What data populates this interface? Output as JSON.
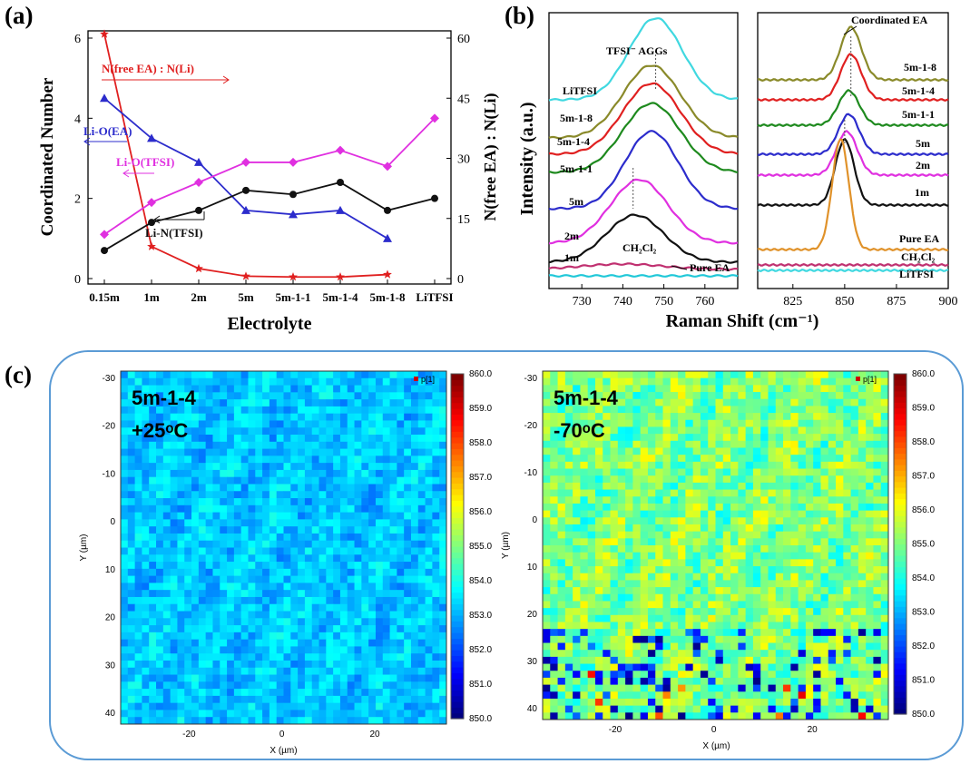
{
  "chart_data": [
    {
      "id": "a",
      "panel_label": "(a)",
      "type": "line",
      "xlabel": "Electrolyte",
      "ylabel_left": "Coordinated Number",
      "ylabel_right": "N(free EA) : N(Li)",
      "categories": [
        "0.15m",
        "1m",
        "2m",
        "5m",
        "5m-1-1",
        "5m-1-4",
        "5m-1-8",
        "LiTFSI"
      ],
      "ylim_left": [
        0,
        6
      ],
      "yticks_left": [
        "0",
        "2",
        "4",
        "6"
      ],
      "ylim_right": [
        0,
        60
      ],
      "yticks_right": [
        "0",
        "15",
        "30",
        "45",
        "60"
      ],
      "series": [
        {
          "name": "N(free EA) : N(Li)",
          "axis": "right",
          "color": "#e02020",
          "marker": "star",
          "values": [
            61,
            8,
            2.5,
            0.6,
            0.4,
            0.4,
            1,
            null
          ]
        },
        {
          "name": "Li-O(EA)",
          "axis": "left",
          "color": "#2c2ccc",
          "marker": "triangle",
          "values": [
            4.5,
            3.5,
            2.9,
            1.7,
            1.6,
            1.7,
            1.0,
            null
          ]
        },
        {
          "name": "Li-O(TFSI)",
          "axis": "left",
          "color": "#e030e0",
          "marker": "diamond",
          "values": [
            1.1,
            1.9,
            2.4,
            2.9,
            2.9,
            3.2,
            2.8,
            4.0
          ]
        },
        {
          "name": "Li-N(TFSI)",
          "axis": "left",
          "color": "#111111",
          "marker": "circle",
          "values": [
            0.7,
            1.4,
            1.7,
            2.2,
            2.1,
            2.4,
            1.7,
            2.0
          ]
        }
      ],
      "annotations": [
        "N(free EA) : N(Li)",
        "Li-O(EA)",
        "Li-O(TFSI)",
        "Li-N(TFSI)"
      ]
    },
    {
      "id": "b",
      "panel_label": "(b)",
      "type": "line",
      "ylabel": "Intensity (a.u.)",
      "xlabel": "Raman Shift (cm⁻¹)",
      "subplots": [
        {
          "xlim": [
            722,
            768
          ],
          "xticks": [
            "730",
            "740",
            "750",
            "760"
          ],
          "tick_values": [
            730,
            740,
            750,
            760
          ],
          "annotation": "TFSI⁻ AGGs",
          "curves": [
            {
              "label": "LiTFSI",
              "color": "#40d8e0",
              "center": 748,
              "height": 90,
              "width": 6.5
            },
            {
              "label": "5m-1-8",
              "color": "#8a8a2a",
              "center": 747,
              "height": 80,
              "width": 7
            },
            {
              "label": "5m-1-4",
              "color": "#e02020",
              "center": 747,
              "height": 78,
              "width": 7
            },
            {
              "label": "5m-1-1",
              "color": "#1e8a1e",
              "center": 747,
              "height": 76,
              "width": 7
            },
            {
              "label": "5m",
              "color": "#2c2ccc",
              "center": 747,
              "height": 85,
              "width": 6.5
            },
            {
              "label": "2m",
              "color": "#e030e0",
              "center": 744,
              "height": 70,
              "width": 7
            },
            {
              "label": "1m",
              "color": "#111111",
              "center": 743,
              "height": 52,
              "width": 7
            },
            {
              "label": "CH₂Cl₂",
              "color": "#c03070",
              "center": 740,
              "height": 6,
              "width": 10
            },
            {
              "label": "Pure EA",
              "color": "#20c8d8",
              "center": 740,
              "height": 0,
              "width": 10
            }
          ]
        },
        {
          "xlim": [
            808,
            900
          ],
          "xticks": [
            "825",
            "850",
            "875",
            "900"
          ],
          "tick_values": [
            825,
            850,
            875,
            900
          ],
          "annotation": "Coordinated EA",
          "curves": [
            {
              "label": "5m-1-8",
              "color": "#8a8a2a",
              "center": 853,
              "height": 58,
              "width": 5
            },
            {
              "label": "5m-1-4",
              "color": "#e02020",
              "center": 853,
              "height": 50,
              "width": 5
            },
            {
              "label": "5m-1-1",
              "color": "#1e8a1e",
              "center": 852,
              "height": 38,
              "width": 5
            },
            {
              "label": "5m",
              "color": "#2c2ccc",
              "center": 852,
              "height": 44,
              "width": 5
            },
            {
              "label": "2m",
              "color": "#e030e0",
              "center": 851,
              "height": 48,
              "width": 5
            },
            {
              "label": "1m",
              "color": "#111111",
              "center": 850,
              "height": 72,
              "width": 4.5
            },
            {
              "label": "Pure EA",
              "color": "#e0922a",
              "center": 848,
              "height": 122,
              "width": 4
            },
            {
              "label": "CH₂Cl₂",
              "color": "#c03070",
              "center": 848,
              "height": 0,
              "width": 5
            },
            {
              "label": "LiTFSI",
              "color": "#40d8e0",
              "center": 848,
              "height": 0,
              "width": 5
            }
          ]
        }
      ]
    },
    {
      "id": "c",
      "panel_label": "(c)",
      "type": "heatmap",
      "xlabel": "X (µm)",
      "ylabel": "Y (µm)",
      "legend_tag": "p[1]",
      "colorbar_ticks": [
        "850.0",
        "851.0",
        "852.0",
        "853.0",
        "854.0",
        "855.0",
        "856.0",
        "857.0",
        "858.0",
        "859.0",
        "860.0"
      ],
      "colorbar_range": [
        850,
        860
      ],
      "xticks": [
        "-20",
        "0",
        "20"
      ],
      "yticks": [
        "-30",
        "-20",
        "-10",
        "0",
        "10",
        "20",
        "30",
        "40"
      ],
      "maps": [
        {
          "title": "5m-1-4",
          "temperature": "+25ᵒC",
          "mean_value": 853.2,
          "spread": 0.6
        },
        {
          "title": "5m-1-4",
          "temperature": "-70ᵒC",
          "mean_value": 855.0,
          "spread": 1.0
        }
      ]
    }
  ],
  "colors": {
    "frame": "#5b9bd5"
  }
}
